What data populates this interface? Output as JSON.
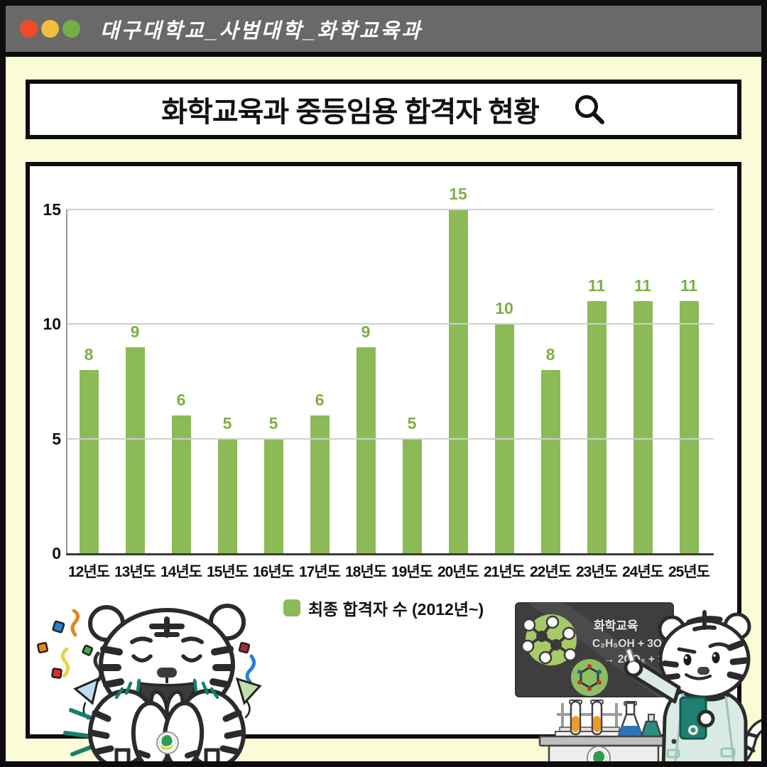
{
  "window": {
    "title": "대구대학교_사범대학_화학교육과",
    "traffic_lights": [
      {
        "name": "red",
        "color": "#EE4B26"
      },
      {
        "name": "yellow",
        "color": "#F2BE3E"
      },
      {
        "name": "green",
        "color": "#74AE47"
      }
    ]
  },
  "header": {
    "title": "화학교육과 중등임용 합격자 현황",
    "search_icon": "magnifier"
  },
  "chart_data": {
    "type": "bar",
    "title": "화학교육과 중등임용 합격자 현황",
    "categories": [
      "12년도",
      "13년도",
      "14년도",
      "15년도",
      "16년도",
      "17년도",
      "18년도",
      "19년도",
      "20년도",
      "21년도",
      "22년도",
      "23년도",
      "24년도",
      "25년도"
    ],
    "values": [
      8,
      9,
      6,
      5,
      5,
      6,
      9,
      5,
      15,
      10,
      8,
      11,
      11,
      11
    ],
    "series_name": "최종 합격자 수 (2012년~)",
    "xlabel": "",
    "ylabel": "",
    "ylim": [
      0,
      15
    ],
    "yticks": [
      0,
      5,
      10,
      15
    ],
    "grid": true,
    "legend_position": "bottom",
    "bar_color": "#8BBA57",
    "value_label_color": "#7CB04A"
  },
  "legend": {
    "label": "최종 합격자 수 (2012년~)",
    "swatch_color": "#8BBA57"
  },
  "mascots": {
    "left": "celebrating-white-tiger-with-confetti",
    "right": "tiger-teacher-in-lab-coat-at-chalkboard",
    "chalkboard": {
      "line1": "화학교육",
      "line2": "C₂H₅OH + 3O₂",
      "line3": "→ 2CO₂ + 3H₂O"
    }
  },
  "colors": {
    "background": "#FBFBD7",
    "titlebar": "#696969",
    "frame_border": "#0D0D0D",
    "card_background": "#FFFFFF",
    "gridline": "#CFCFCF",
    "accent_teal": "#157F6B",
    "lab_coat_mint": "#D9EBE4",
    "chalkboard": "#3E3E3E"
  }
}
